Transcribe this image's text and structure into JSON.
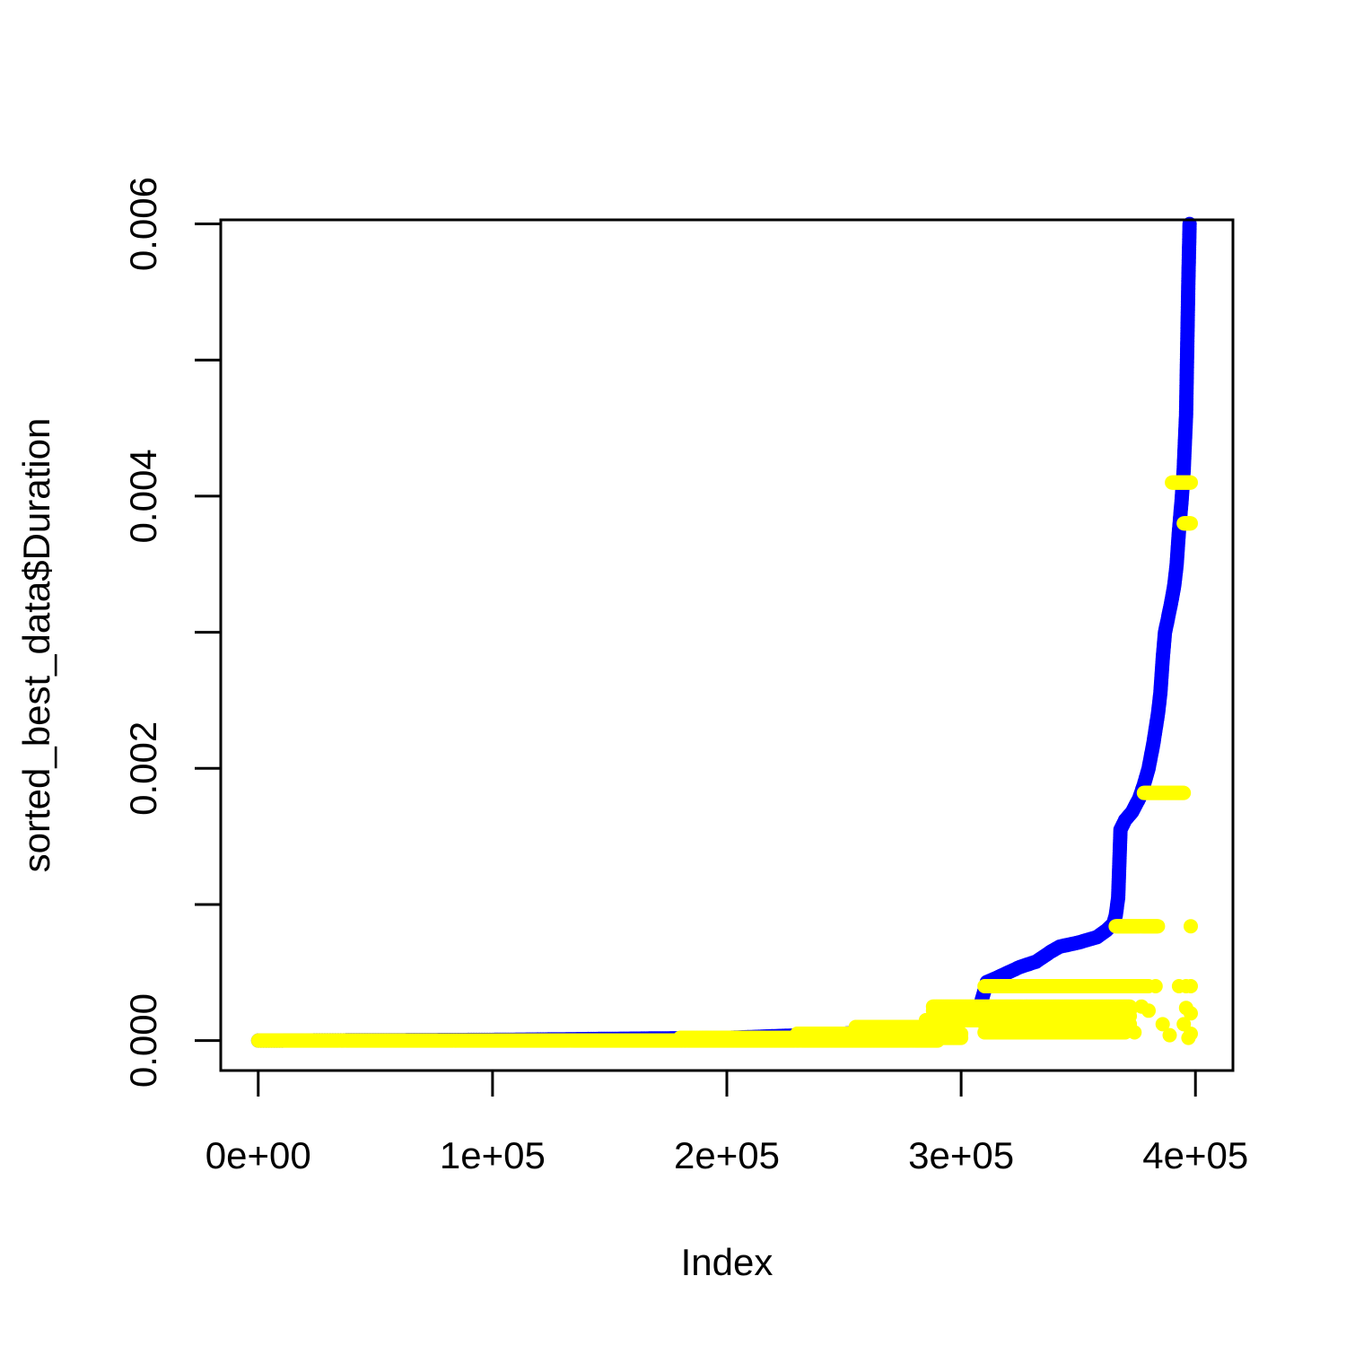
{
  "chart_data": {
    "type": "scatter",
    "title": "",
    "xlabel": "Index",
    "ylabel": "sorted_best_data$Duration",
    "xlim": [
      -16000,
      416000
    ],
    "ylim": [
      -0.00022,
      0.00603
    ],
    "xticks": [
      0,
      100000,
      200000,
      300000,
      400000
    ],
    "xtick_labels": [
      "0e+00",
      "1e+05",
      "2e+05",
      "3e+05",
      "4e+05"
    ],
    "yticks": [
      0,
      0.001,
      0.002,
      0.003,
      0.004,
      0.005,
      0.006
    ],
    "ytick_labels": [
      "0.000",
      "",
      "0.002",
      "",
      "0.004",
      "",
      "0.006"
    ],
    "grid": false,
    "legend": "none",
    "series": [
      {
        "color": "#0000ff",
        "style": "dense-points",
        "x": [
          0,
          100000,
          200000,
          250000,
          290000,
          300000,
          308000,
          311000,
          315000,
          320000,
          325000,
          332000,
          338000,
          342000,
          350000,
          358000,
          362000,
          365000,
          366000,
          367000,
          368000,
          370000,
          373000,
          376000,
          378000,
          380000,
          382000,
          384000,
          385000,
          386000,
          387000,
          388000,
          390000,
          391000,
          392000,
          393000,
          394000,
          395000,
          396000,
          396500,
          397000,
          397500
        ],
        "y": [
          0,
          5e-06,
          2e-05,
          5e-05,
          0.0001,
          0.00018,
          0.00025,
          0.00043,
          0.00046,
          0.0005,
          0.00054,
          0.00058,
          0.00065,
          0.00069,
          0.00072,
          0.00076,
          0.00081,
          0.00086,
          0.00092,
          0.00105,
          0.00155,
          0.00162,
          0.00168,
          0.00178,
          0.00188,
          0.002,
          0.00218,
          0.0024,
          0.00255,
          0.0028,
          0.003,
          0.00308,
          0.00325,
          0.00335,
          0.0035,
          0.00375,
          0.00395,
          0.0042,
          0.0046,
          0.0051,
          0.0056,
          0.006
        ]
      },
      {
        "color": "#ffff00",
        "style": "points",
        "runs": [
          {
            "x0": 0,
            "x1": 290000,
            "y": 0,
            "density": 600
          },
          {
            "x0": 180000,
            "x1": 300000,
            "y": 2e-05,
            "density": 260
          },
          {
            "x0": 230000,
            "x1": 300000,
            "y": 5e-05,
            "density": 140
          },
          {
            "x0": 255000,
            "x1": 295000,
            "y": 0.0001,
            "density": 80
          },
          {
            "x0": 285000,
            "x1": 310000,
            "y": 0.00015,
            "density": 50
          },
          {
            "x0": 310000,
            "x1": 370000,
            "y": 6e-05,
            "density": 90
          },
          {
            "x0": 310000,
            "x1": 372000,
            "y": 0.00012,
            "density": 100
          },
          {
            "x0": 288000,
            "x1": 372000,
            "y": 0.00018,
            "density": 130
          },
          {
            "x0": 288000,
            "x1": 372000,
            "y": 0.00022,
            "density": 130
          },
          {
            "x0": 288000,
            "x1": 372000,
            "y": 0.00025,
            "density": 130
          },
          {
            "x0": 310000,
            "x1": 380000,
            "y": 0.0004,
            "density": 130
          },
          {
            "x0": 366000,
            "x1": 384000,
            "y": 0.00084,
            "density": 50
          },
          {
            "x0": 378000,
            "x1": 395000,
            "y": 0.00182,
            "density": 50
          },
          {
            "x0": 390000,
            "x1": 398000,
            "y": 0.0041,
            "density": 25
          },
          {
            "x0": 395000,
            "x1": 398000,
            "y": 0.0038,
            "density": 10
          }
        ],
        "points": [
          {
            "x": 374000,
            "y": 6e-05
          },
          {
            "x": 377000,
            "y": 0.00025
          },
          {
            "x": 380000,
            "y": 0.00022
          },
          {
            "x": 383000,
            "y": 0.0004
          },
          {
            "x": 386000,
            "y": 0.00012
          },
          {
            "x": 389000,
            "y": 4e-05
          },
          {
            "x": 393000,
            "y": 0.0004
          },
          {
            "x": 396000,
            "y": 0.0004
          },
          {
            "x": 398000,
            "y": 0.0004
          },
          {
            "x": 397000,
            "y": 2e-05
          },
          {
            "x": 398000,
            "y": 5e-05
          },
          {
            "x": 398000,
            "y": 0.0002
          },
          {
            "x": 398000,
            "y": 0.00084
          },
          {
            "x": 395000,
            "y": 0.00012
          },
          {
            "x": 396000,
            "y": 0.00024
          }
        ]
      }
    ]
  }
}
